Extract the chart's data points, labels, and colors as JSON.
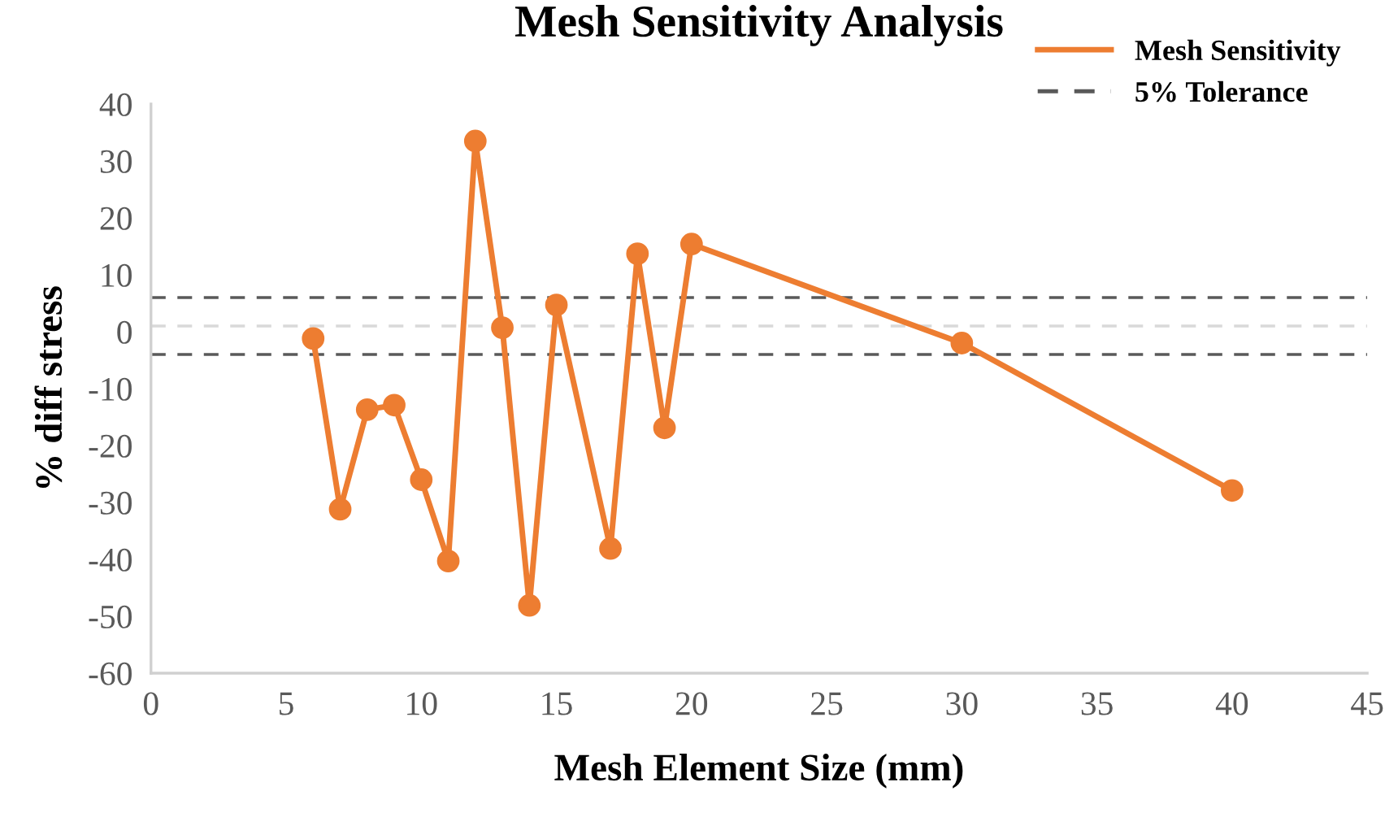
{
  "chart_data": {
    "type": "line",
    "title": "Mesh Sensitivity Analysis",
    "xlabel": "Mesh Element Size (mm)",
    "ylabel": "% diff stress",
    "x": [
      6,
      7,
      8,
      9,
      10,
      11,
      12,
      13,
      14,
      15,
      17,
      18,
      19,
      20,
      30,
      40
    ],
    "series": [
      {
        "name": "Mesh Sensitivity",
        "color": "#ed7d31",
        "values": [
          -1.2,
          -31.2,
          -13.7,
          -12.9,
          -26,
          -40.3,
          33.5,
          0.7,
          -48.1,
          4.7,
          -38.1,
          13.7,
          -16.9,
          15.4,
          -2,
          -27.9
        ]
      }
    ],
    "ref_lines": [
      {
        "axis": "y",
        "value": 6,
        "label": "5% Tolerance",
        "color": "#595959",
        "line_style": "dashed"
      },
      {
        "axis": "y",
        "value": 1,
        "color": "#d9d9d9",
        "line_style": "dashed"
      },
      {
        "axis": "y",
        "value": -4,
        "color": "#595959",
        "line_style": "dashed"
      }
    ],
    "xlim": [
      0,
      45
    ],
    "xticks": [
      0,
      5,
      10,
      15,
      20,
      25,
      30,
      35,
      40,
      45
    ],
    "ylim": [
      -60,
      40
    ],
    "yticks": [
      -60,
      -50,
      -40,
      -30,
      -20,
      -10,
      0,
      10,
      20,
      30,
      40
    ],
    "marker": "circle",
    "line_style": "solid",
    "grid": false,
    "legend": "top right"
  }
}
